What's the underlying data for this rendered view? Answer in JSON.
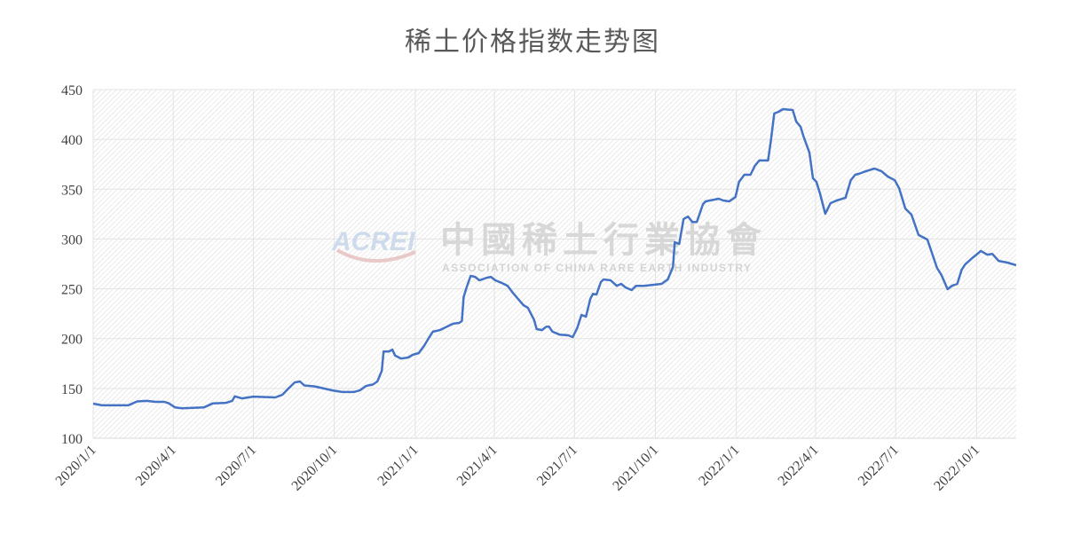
{
  "chart_data": {
    "type": "line",
    "title": "稀土价格指数走势图",
    "xlabel": "",
    "ylabel": "",
    "xlim": [
      "2020-01-01",
      "2022-11-15"
    ],
    "ylim": [
      100,
      450
    ],
    "yticks": [
      100,
      150,
      200,
      250,
      300,
      350,
      400,
      450
    ],
    "xticks": [
      "2020/1/1",
      "2020/4/1",
      "2020/7/1",
      "2020/10/1",
      "2021/1/1",
      "2021/4/1",
      "2021/7/1",
      "2021/10/1",
      "2022/1/1",
      "2022/4/1",
      "2022/7/1",
      "2022/10/1"
    ],
    "grid": true,
    "legend": "none",
    "line_color": "#4472C4",
    "watermark": {
      "logo": "ACREI",
      "cn": "中國稀土行業協會",
      "en": "ASSOCIATION OF CHINA RARE EARTH INDUSTRY"
    },
    "points": [
      [
        "2020-01-01",
        134.7
      ],
      [
        "2020-01-11",
        133
      ],
      [
        "2020-02-10",
        133
      ],
      [
        "2020-02-15",
        135
      ],
      [
        "2020-02-20",
        137
      ],
      [
        "2020-03-02",
        137.5
      ],
      [
        "2020-03-12",
        136.5
      ],
      [
        "2020-03-22",
        136.5
      ],
      [
        "2020-03-27",
        135
      ],
      [
        "2020-04-03",
        131
      ],
      [
        "2020-04-11",
        130
      ],
      [
        "2020-05-06",
        131
      ],
      [
        "2020-05-16",
        135
      ],
      [
        "2020-05-31",
        135.5
      ],
      [
        "2020-06-07",
        137.5
      ],
      [
        "2020-06-10",
        142
      ],
      [
        "2020-06-18",
        140
      ],
      [
        "2020-07-01",
        141.8
      ],
      [
        "2020-07-26",
        141
      ],
      [
        "2020-08-03",
        143.6
      ],
      [
        "2020-08-10",
        150
      ],
      [
        "2020-08-17",
        156
      ],
      [
        "2020-08-23",
        157
      ],
      [
        "2020-08-28",
        153
      ],
      [
        "2020-09-09",
        152
      ],
      [
        "2020-09-19",
        150
      ],
      [
        "2020-09-29",
        148
      ],
      [
        "2020-10-10",
        146.4
      ],
      [
        "2020-10-23",
        146.4
      ],
      [
        "2020-10-30",
        148
      ],
      [
        "2020-11-06",
        152.5
      ],
      [
        "2020-11-14",
        154
      ],
      [
        "2020-11-19",
        157
      ],
      [
        "2020-11-24",
        167.7
      ],
      [
        "2020-11-26",
        187
      ],
      [
        "2020-12-02",
        187
      ],
      [
        "2020-12-06",
        189
      ],
      [
        "2020-12-09",
        183
      ],
      [
        "2020-12-16",
        180
      ],
      [
        "2020-12-24",
        181
      ],
      [
        "2020-12-29",
        183.7
      ],
      [
        "2021-01-05",
        185.5
      ],
      [
        "2021-01-11",
        192.6
      ],
      [
        "2021-01-16",
        200
      ],
      [
        "2021-01-21",
        207
      ],
      [
        "2021-01-29",
        208.6
      ],
      [
        "2021-02-06",
        212
      ],
      [
        "2021-02-13",
        215
      ],
      [
        "2021-02-20",
        215.8
      ],
      [
        "2021-02-23",
        217.6
      ],
      [
        "2021-02-25",
        241.6
      ],
      [
        "2021-02-28",
        250.5
      ],
      [
        "2021-03-05",
        263
      ],
      [
        "2021-03-10",
        262
      ],
      [
        "2021-03-15",
        258.5
      ],
      [
        "2021-03-23",
        261
      ],
      [
        "2021-03-28",
        262
      ],
      [
        "2021-04-02",
        258.5
      ],
      [
        "2021-04-09",
        256
      ],
      [
        "2021-04-16",
        253
      ],
      [
        "2021-04-22",
        246
      ],
      [
        "2021-04-27",
        240.7
      ],
      [
        "2021-05-04",
        233.6
      ],
      [
        "2021-05-09",
        231
      ],
      [
        "2021-05-16",
        219
      ],
      [
        "2021-05-19",
        209.5
      ],
      [
        "2021-05-25",
        208.6
      ],
      [
        "2021-05-30",
        212
      ],
      [
        "2021-06-02",
        212
      ],
      [
        "2021-06-06",
        207
      ],
      [
        "2021-06-14",
        204
      ],
      [
        "2021-06-24",
        203.3
      ],
      [
        "2021-06-29",
        201.5
      ],
      [
        "2021-07-04",
        210.4
      ],
      [
        "2021-07-09",
        223.8
      ],
      [
        "2021-07-14",
        222
      ],
      [
        "2021-07-19",
        240
      ],
      [
        "2021-07-22",
        245
      ],
      [
        "2021-07-26",
        244.3
      ],
      [
        "2021-07-31",
        256.7
      ],
      [
        "2021-08-03",
        259.4
      ],
      [
        "2021-08-11",
        258.5
      ],
      [
        "2021-08-18",
        253
      ],
      [
        "2021-08-23",
        255
      ],
      [
        "2021-08-28",
        251.4
      ],
      [
        "2021-09-04",
        248.7
      ],
      [
        "2021-09-09",
        253
      ],
      [
        "2021-09-18",
        253
      ],
      [
        "2021-09-28",
        254
      ],
      [
        "2021-10-08",
        255
      ],
      [
        "2021-10-15",
        259.4
      ],
      [
        "2021-10-21",
        272
      ],
      [
        "2021-10-23",
        296.8
      ],
      [
        "2021-10-28",
        295
      ],
      [
        "2021-11-02",
        320
      ],
      [
        "2021-11-07",
        322.6
      ],
      [
        "2021-11-12",
        317
      ],
      [
        "2021-11-17",
        317
      ],
      [
        "2021-11-24",
        335
      ],
      [
        "2021-11-27",
        337.8
      ],
      [
        "2021-12-02",
        338.7
      ],
      [
        "2021-12-12",
        340.5
      ],
      [
        "2021-12-17",
        338.7
      ],
      [
        "2021-12-24",
        337.8
      ],
      [
        "2021-12-31",
        342.2
      ],
      [
        "2022-01-04",
        357.4
      ],
      [
        "2022-01-10",
        364.5
      ],
      [
        "2022-01-17",
        364.5
      ],
      [
        "2022-01-22",
        373.4
      ],
      [
        "2022-01-27",
        378.8
      ],
      [
        "2022-02-06",
        378.8
      ],
      [
        "2022-02-09",
        397.4
      ],
      [
        "2022-02-13",
        426
      ],
      [
        "2022-02-18",
        427.7
      ],
      [
        "2022-02-23",
        430.4
      ],
      [
        "2022-03-06",
        429.5
      ],
      [
        "2022-03-10",
        418
      ],
      [
        "2022-03-15",
        412.6
      ],
      [
        "2022-03-18",
        403.7
      ],
      [
        "2022-03-25",
        386.8
      ],
      [
        "2022-03-29",
        361
      ],
      [
        "2022-04-02",
        357.4
      ],
      [
        "2022-04-06",
        345.8
      ],
      [
        "2022-04-12",
        325.3
      ],
      [
        "2022-04-18",
        336
      ],
      [
        "2022-04-25",
        338.7
      ],
      [
        "2022-05-05",
        341.4
      ],
      [
        "2022-05-11",
        359
      ],
      [
        "2022-05-16",
        364.5
      ],
      [
        "2022-05-20",
        365.4
      ],
      [
        "2022-05-28",
        368
      ],
      [
        "2022-06-07",
        370.7
      ],
      [
        "2022-06-15",
        368
      ],
      [
        "2022-06-22",
        362.7
      ],
      [
        "2022-06-30",
        359
      ],
      [
        "2022-07-05",
        351
      ],
      [
        "2022-07-12",
        330.6
      ],
      [
        "2022-07-19",
        324.4
      ],
      [
        "2022-07-27",
        304
      ],
      [
        "2022-08-06",
        299.5
      ],
      [
        "2022-08-17",
        271
      ],
      [
        "2022-08-22",
        264
      ],
      [
        "2022-08-29",
        249.6
      ],
      [
        "2022-09-03",
        253
      ],
      [
        "2022-09-09",
        255
      ],
      [
        "2022-09-14",
        269
      ],
      [
        "2022-09-18",
        274.5
      ],
      [
        "2022-09-26",
        280.8
      ],
      [
        "2022-10-06",
        288
      ],
      [
        "2022-10-13",
        284.3
      ],
      [
        "2022-10-19",
        285
      ],
      [
        "2022-10-26",
        278
      ],
      [
        "2022-11-05",
        276.3
      ],
      [
        "2022-11-15",
        273.7
      ]
    ]
  }
}
